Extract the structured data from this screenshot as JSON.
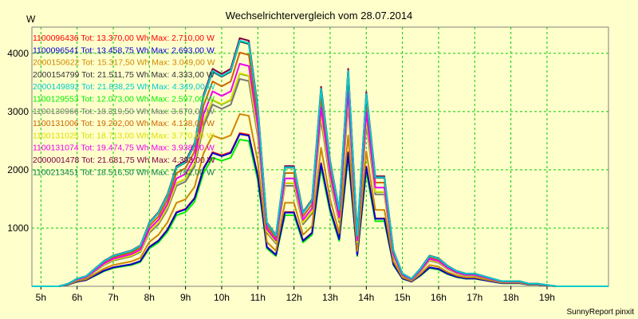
{
  "chart_data": {
    "type": "line",
    "title": "Wechselrichtervergleich vom 28.07.2014",
    "ylabel": "W",
    "xlabel": "",
    "credit": "SunnyReport pinxit",
    "grid": true,
    "legend_placement": "top-left",
    "x_ticks": [
      "5h",
      "6h",
      "7h",
      "8h",
      "9h",
      "10h",
      "11h",
      "12h",
      "13h",
      "14h",
      "15h",
      "16h",
      "17h",
      "18h",
      "19h"
    ],
    "y_ticks": [
      1000,
      2000,
      3000,
      4000
    ],
    "xlim": [
      4.75,
      20.7
    ],
    "ylim": [
      0,
      4450
    ],
    "x": [
      4.75,
      5.0,
      5.25,
      5.5,
      5.75,
      6.0,
      6.25,
      6.5,
      6.75,
      7.0,
      7.25,
      7.5,
      7.75,
      8.0,
      8.25,
      8.5,
      8.75,
      9.0,
      9.25,
      9.5,
      9.75,
      10.0,
      10.25,
      10.5,
      10.75,
      11.0,
      11.25,
      11.5,
      11.75,
      12.0,
      12.25,
      12.5,
      12.75,
      13.0,
      13.25,
      13.5,
      13.75,
      14.0,
      14.25,
      14.5,
      14.75,
      15.0,
      15.25,
      15.5,
      15.75,
      16.0,
      16.25,
      16.5,
      16.75,
      17.0,
      17.25,
      17.5,
      17.75,
      18.0,
      18.25,
      18.5,
      18.75,
      19.0,
      19.25,
      19.5,
      19.75,
      20.0,
      20.25,
      20.5,
      20.7
    ],
    "base_profile": [
      0,
      0,
      0,
      0,
      0.01,
      0.03,
      0.04,
      0.07,
      0.1,
      0.12,
      0.13,
      0.14,
      0.16,
      0.25,
      0.29,
      0.36,
      0.47,
      0.49,
      0.56,
      0.75,
      0.85,
      0.83,
      0.85,
      0.97,
      0.96,
      0.7,
      0.25,
      0.2,
      0.47,
      0.47,
      0.29,
      0.34,
      0.78,
      0.49,
      0.3,
      0.85,
      0.2,
      0.76,
      0.43,
      0.43,
      0.14,
      0.05,
      0.03,
      0.07,
      0.12,
      0.11,
      0.08,
      0.06,
      0.05,
      0.05,
      0.04,
      0.03,
      0.02,
      0.02,
      0.02,
      0.01,
      0.01,
      0.005,
      0,
      0,
      0,
      0,
      0,
      0,
      0
    ],
    "series": [
      {
        "name": "1100096436",
        "total": "Tot: 13.370,00 Wh",
        "max": "Max: 2.710,00 W",
        "color": "#ff0000",
        "peak": 2710
      },
      {
        "name": "1100096541",
        "total": "Tot: 13.458,75 Wh",
        "max": "Max: 2.693,00 W",
        "color": "#0000cc",
        "peak": 2693
      },
      {
        "name": "2000150622",
        "total": "Tot: 15.317,50 Wh",
        "max": "Max: 3.049,00 W",
        "color": "#cc8800",
        "peak": 3049
      },
      {
        "name": "2000154799",
        "total": "Tot: 21.511,75 Wh",
        "max": "Max: 4.333,00 W",
        "color": "#333333",
        "peak": 4333
      },
      {
        "name": "2000149892",
        "total": "Tot: 21.838,25 Wh",
        "max": "Max: 4.349,00 W",
        "color": "#00cccc",
        "peak": 4349
      },
      {
        "name": "1100129553",
        "total": "Tot: 12.073,00 Wh",
        "max": "Max: 2.597,00 W",
        "color": "#00ee00",
        "peak": 2597
      },
      {
        "name": "1100130966",
        "total": "Tot: 18.319,50 Wh",
        "max": "Max: 3.670,00 W",
        "color": "#777777",
        "peak": 3670
      },
      {
        "name": "1100131006",
        "total": "Tot: 19.292,00 Wh",
        "max": "Max: 4.138,00 W",
        "color": "#cc6600",
        "peak": 4138
      },
      {
        "name": "1100131025",
        "total": "Tot: 18.713,00 Wh",
        "max": "Max: 3.770,00 W",
        "color": "#dddd00",
        "peak": 3770
      },
      {
        "name": "1100131074",
        "total": "Tot: 19.474,75 Wh",
        "max": "Max: 3.938,00 W",
        "color": "#ee00ee",
        "peak": 3938
      },
      {
        "name": "2000001478",
        "total": "Tot: 21.681,75 Wh",
        "max": "Max: 4.393,00 W",
        "color": "#800040",
        "peak": 4393
      },
      {
        "name": "1100213451",
        "total": "Tot: 18.516,50 Wh",
        "max": "Max: 3.762,00 W",
        "color": "#008040",
        "peak": 3762
      }
    ]
  }
}
